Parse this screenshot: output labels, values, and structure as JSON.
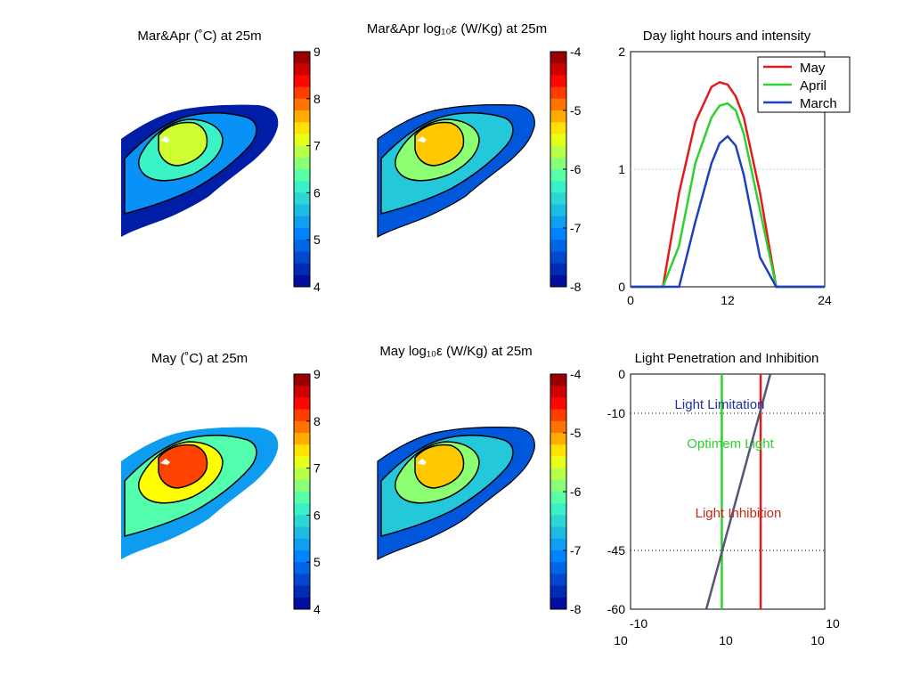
{
  "chart_data": [
    {
      "type": "heatmap",
      "title": "Mar&Apr (˚C) at 25m",
      "colorbar": {
        "ticks": [
          "9",
          "8",
          "7",
          "6",
          "5",
          "4"
        ],
        "range": [
          4,
          9
        ]
      },
      "colormap": "jet",
      "field_level": 0.1
    },
    {
      "type": "heatmap",
      "title": "Mar&Apr log₁₀ε (W/Kg) at 25m",
      "colorbar": {
        "ticks": [
          "-4",
          "-5",
          "-6",
          "-7",
          "-8"
        ],
        "range": [
          -8,
          -4
        ]
      },
      "colormap": "jet",
      "field_level": 0.55
    },
    {
      "type": "line",
      "title": "Day light hours and intensity",
      "x": [
        0,
        2,
        4,
        6,
        8,
        10,
        11,
        12,
        13,
        14,
        16,
        18,
        20,
        22,
        24
      ],
      "xticks": [
        "0",
        "12",
        "24"
      ],
      "yticks": [
        "0",
        "1",
        "2"
      ],
      "xlim": [
        0,
        24
      ],
      "ylim": [
        0,
        2
      ],
      "grid_y": [
        1
      ],
      "legend": "top-right",
      "series": [
        {
          "name": "May",
          "color": "#e31a1c",
          "values": [
            0,
            0,
            0,
            0.8,
            1.4,
            1.7,
            1.74,
            1.72,
            1.62,
            1.44,
            0.8,
            0,
            0,
            0,
            0
          ]
        },
        {
          "name": "April",
          "color": "#2ed12e",
          "values": [
            0,
            0,
            0,
            0.35,
            1.05,
            1.44,
            1.54,
            1.56,
            1.5,
            1.3,
            0.65,
            0,
            0,
            0,
            0
          ]
        },
        {
          "name": "March",
          "color": "#1f3fbf",
          "values": [
            0,
            0,
            0,
            0,
            0.55,
            1.05,
            1.22,
            1.28,
            1.2,
            0.95,
            0.25,
            0,
            0,
            0,
            0
          ]
        }
      ]
    },
    {
      "type": "heatmap",
      "title": "May (˚C) at 25m",
      "colorbar": {
        "ticks": [
          "9",
          "8",
          "7",
          "6",
          "5",
          "4"
        ],
        "range": [
          4,
          9
        ]
      },
      "colormap": "jet",
      "field_level": 0.72
    },
    {
      "type": "heatmap",
      "title": "May log₁₀ε (W/Kg) at 25m",
      "colorbar": {
        "ticks": [
          "-4",
          "-5",
          "-6",
          "-7",
          "-8"
        ],
        "range": [
          -8,
          -4
        ]
      },
      "colormap": "jet",
      "field_level": 0.55
    },
    {
      "type": "line",
      "title": "Light Penetration and Inhibition",
      "yticks": [
        "0",
        "-10",
        "-45",
        "-60"
      ],
      "ylim": [
        -60,
        0
      ],
      "xticks_top": [
        "-10",
        "10"
      ],
      "xticks_bottom": [
        "10",
        "10",
        "10"
      ],
      "h_lines": [
        -10,
        -45
      ],
      "annotations": [
        {
          "text": "Light Limitation",
          "color": "#1f2fa8"
        },
        {
          "text": "Optimem Light",
          "color": "#2ed12e"
        },
        {
          "text": "Light Inhibition",
          "color": "#c8281c"
        }
      ],
      "vertical_lines": [
        {
          "color": "#2ed12e",
          "x_fraction": 0.47
        },
        {
          "color": "#e31a1c",
          "x_fraction": 0.67
        }
      ],
      "profile": {
        "color": "#555577",
        "top_x_fraction": 0.72,
        "bottom_x_fraction": 0.39
      }
    }
  ]
}
